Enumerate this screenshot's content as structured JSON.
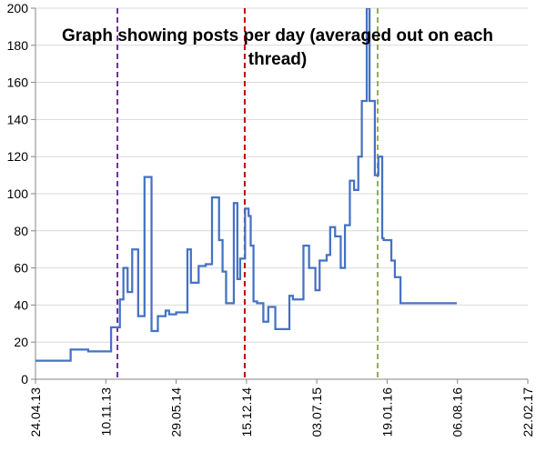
{
  "chart_data": {
    "type": "line",
    "title_lines": [
      "Graph showing posts per day (averaged out on each",
      "thread)"
    ],
    "xlabel": "",
    "ylabel": "",
    "ylim": [
      0,
      200
    ],
    "y_ticks": [
      0,
      20,
      40,
      60,
      80,
      100,
      120,
      140,
      160,
      180,
      200
    ],
    "x_ticks": [
      {
        "label": "24.04.13",
        "x": 0
      },
      {
        "label": "10.11.13",
        "x": 200
      },
      {
        "label": "29.05.14",
        "x": 400
      },
      {
        "label": "15.12.14",
        "x": 600
      },
      {
        "label": "03.07.15",
        "x": 800
      },
      {
        "label": "19.01.16",
        "x": 1000
      },
      {
        "label": "06.08.16",
        "x": 1200
      },
      {
        "label": "22.02.17",
        "x": 1400
      }
    ],
    "xlim": [
      0,
      1400
    ],
    "grid": true,
    "line_color": "#4472C4",
    "series": [
      {
        "name": "Posts per day",
        "step": true,
        "x": [
          0,
          100,
          150,
          215,
          240,
          250,
          262,
          275,
          292,
          310,
          330,
          348,
          362,
          370,
          380,
          400,
          432,
          442,
          464,
          484,
          502,
          522,
          532,
          542,
          553,
          564,
          574,
          582,
          596,
          606,
          612,
          620,
          630,
          640,
          648,
          662,
          682,
          698,
          722,
          732,
          762,
          778,
          796,
          808,
          828,
          838,
          852,
          868,
          880,
          894,
          906,
          918,
          928,
          942,
          950,
          965,
          975,
          986,
          990,
          1012,
          1022,
          1038,
          1058,
          1070,
          1080,
          1090,
          1097,
          1100,
          1108,
          1118,
          1130,
          1140,
          1162,
          1178,
          1190,
          1198
        ],
        "y": [
          10,
          16,
          15,
          28,
          43,
          60,
          47,
          70,
          34,
          109,
          26,
          34,
          34,
          37,
          35,
          36,
          70,
          52,
          61,
          62,
          98,
          75,
          58,
          41,
          41,
          95,
          54,
          65,
          92,
          88,
          72,
          42,
          41,
          41,
          31,
          39,
          27,
          27,
          45,
          43,
          72,
          60,
          48,
          64,
          67,
          82,
          77,
          60,
          83,
          107,
          102,
          120,
          150,
          200,
          150,
          110,
          120,
          76,
          75,
          64,
          55,
          41,
          41,
          41,
          41,
          41,
          41,
          41,
          41,
          41,
          41,
          41,
          41,
          41,
          41,
          41
        ]
      }
    ],
    "reference_lines": [
      {
        "x": 233,
        "color": "#7030A0"
      },
      {
        "x": 595,
        "color": "#C00000"
      },
      {
        "x": 973,
        "color": "#92B050"
      }
    ]
  }
}
